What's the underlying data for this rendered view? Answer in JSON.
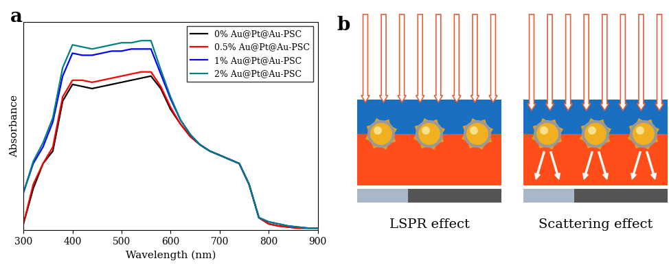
{
  "chart_data": {
    "type": "line",
    "x_label": "Wavelength (nm)",
    "y_label": "Absorbance",
    "x": [
      300,
      320,
      340,
      360,
      380,
      400,
      420,
      440,
      460,
      480,
      500,
      520,
      540,
      560,
      580,
      600,
      620,
      640,
      660,
      680,
      700,
      720,
      740,
      760,
      780,
      800,
      820,
      840,
      860,
      880,
      900
    ],
    "series": [
      {
        "name": "0% Au@Pt@Au-PSC",
        "color": "#000000",
        "values": [
          0.03,
          0.2,
          0.32,
          0.38,
          0.62,
          0.7,
          0.69,
          0.68,
          0.69,
          0.7,
          0.71,
          0.72,
          0.73,
          0.74,
          0.68,
          0.58,
          0.51,
          0.45,
          0.41,
          0.38,
          0.36,
          0.34,
          0.32,
          0.22,
          0.06,
          0.03,
          0.02,
          0.015,
          0.01,
          0.01,
          0.01
        ]
      },
      {
        "name": "0.5% Au@Pt@Au-PSC",
        "color": "#ff0000",
        "values": [
          0.03,
          0.22,
          0.32,
          0.4,
          0.64,
          0.72,
          0.72,
          0.71,
          0.72,
          0.73,
          0.74,
          0.75,
          0.76,
          0.76,
          0.69,
          0.59,
          0.51,
          0.45,
          0.41,
          0.38,
          0.36,
          0.34,
          0.32,
          0.22,
          0.06,
          0.03,
          0.02,
          0.015,
          0.01,
          0.01,
          0.01
        ]
      },
      {
        "name": "1% Au@Pt@Au-PSC",
        "color": "#0000ff",
        "values": [
          0.18,
          0.32,
          0.4,
          0.52,
          0.74,
          0.85,
          0.84,
          0.84,
          0.85,
          0.86,
          0.86,
          0.87,
          0.87,
          0.87,
          0.75,
          0.63,
          0.53,
          0.46,
          0.41,
          0.38,
          0.36,
          0.34,
          0.32,
          0.22,
          0.06,
          0.04,
          0.03,
          0.02,
          0.015,
          0.01,
          0.01
        ]
      },
      {
        "name": "2% Au@Pt@Au-PSC",
        "color": "#008080",
        "values": [
          0.18,
          0.33,
          0.42,
          0.54,
          0.78,
          0.89,
          0.88,
          0.87,
          0.88,
          0.89,
          0.9,
          0.9,
          0.91,
          0.91,
          0.77,
          0.64,
          0.53,
          0.46,
          0.41,
          0.38,
          0.36,
          0.34,
          0.32,
          0.22,
          0.06,
          0.04,
          0.03,
          0.02,
          0.015,
          0.01,
          0.01
        ]
      }
    ],
    "xlim": [
      300,
      900
    ],
    "xticks": [
      300,
      400,
      500,
      600,
      700,
      800,
      900
    ],
    "ylim": [
      0,
      1.0
    ],
    "yticks": [],
    "legend": "upper right",
    "tick_labels": "x"
  },
  "panel_labels": [
    "a",
    "b"
  ],
  "diagram": {
    "captions": [
      "LSPR effect",
      "Scattering effect"
    ]
  }
}
